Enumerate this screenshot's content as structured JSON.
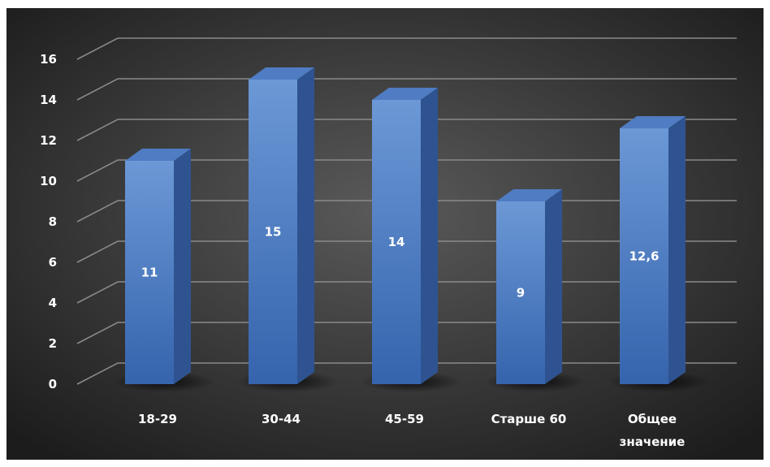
{
  "chart_data": {
    "type": "bar",
    "categories": [
      "18-29",
      "30-44",
      "45-59",
      "Старше 60",
      "Общее значение"
    ],
    "category_lines": [
      [
        "18-29"
      ],
      [
        "30-44"
      ],
      [
        "45-59"
      ],
      [
        "Старше 60"
      ],
      [
        "Общее",
        "значение"
      ]
    ],
    "values": [
      11,
      15,
      14,
      9,
      12.6
    ],
    "data_labels": [
      "11",
      "15",
      "14",
      "9",
      "12,6"
    ],
    "title": "",
    "xlabel": "",
    "ylabel": "",
    "ylim": [
      0,
      16
    ],
    "yticks": [
      0,
      2,
      4,
      6,
      8,
      10,
      12,
      14,
      16
    ],
    "grid": true,
    "style": "3d-column",
    "colors": {
      "background_center": "#5a5a5a",
      "background_edge": "#1c1c1c",
      "bar_front_top": "#6c98d6",
      "bar_front_bottom": "#3564ad",
      "bar_side": "#2e5390",
      "bar_top": "#4f7cc2",
      "gridline": "#8a8a8a",
      "text": "#ffffff"
    }
  }
}
